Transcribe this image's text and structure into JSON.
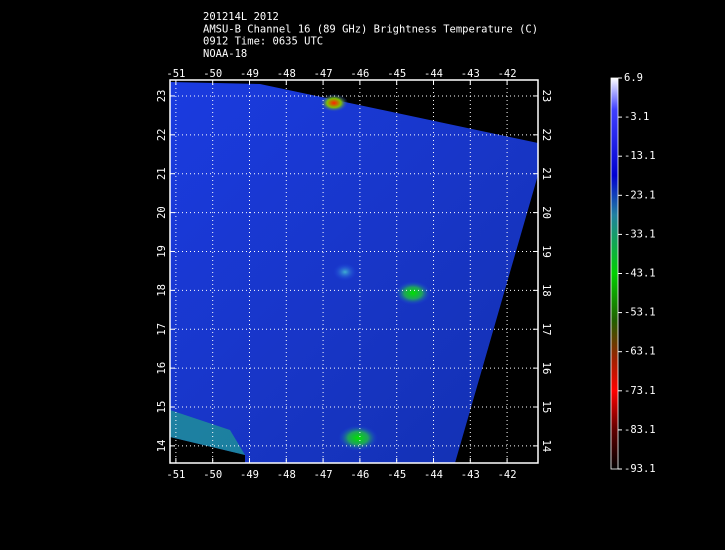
{
  "map": {
    "title_lines": [
      "201214L 2012",
      "AMSU-B Channel 16 (89 GHz) Brightness Temperature (C)",
      "0912 Time: 0635 UTC",
      "NOAA-18"
    ],
    "lon_lim": [
      -51.16,
      -41.16
    ],
    "lat_lim": [
      13.56,
      23.41
    ],
    "lon_ticks": [
      -51,
      -50,
      -49,
      -48,
      -47,
      -46,
      -45,
      -44,
      -43,
      -42
    ],
    "lat_ticks": [
      23,
      22,
      21,
      20,
      19,
      18,
      17,
      16,
      15,
      14
    ],
    "colorbar": {
      "range": [
        6.9,
        -93.1
      ],
      "ticks": [
        6.9,
        -3.1,
        -13.1,
        -23.1,
        -33.1,
        -43.1,
        -53.1,
        -63.1,
        -73.1,
        -83.1,
        -93.1
      ]
    }
  }
}
